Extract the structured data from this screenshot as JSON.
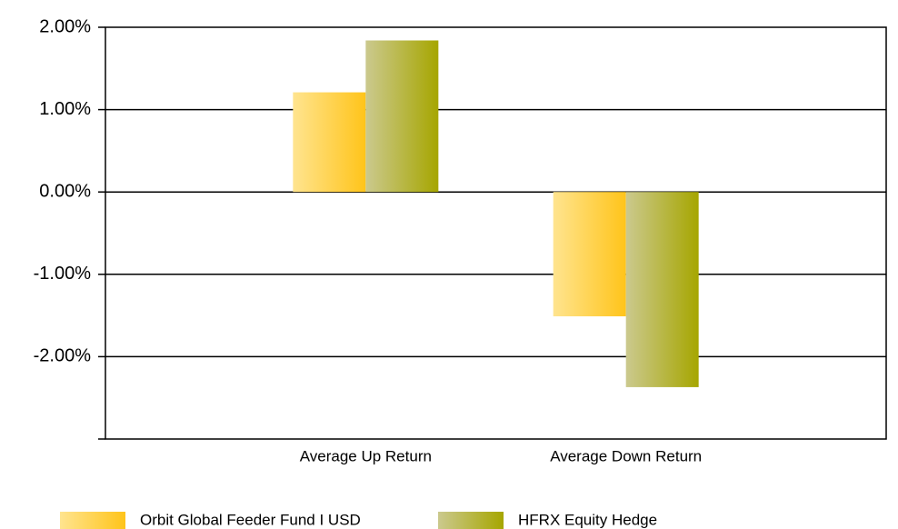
{
  "chart_data": {
    "type": "bar",
    "categories": [
      "Average Up Return",
      "Average Down Return"
    ],
    "series": [
      {
        "name": "Orbit Global Feeder Fund I USD",
        "color": [
          "#ffe48f",
          "#ffc41a"
        ],
        "values": [
          1.21,
          -1.51
        ]
      },
      {
        "name": "HFRX Equity Hedge",
        "color": [
          "#cbc98e",
          "#a6a600"
        ],
        "values": [
          1.84,
          -2.37
        ]
      }
    ],
    "ylim": [
      -3,
      2
    ],
    "yticks": [
      {
        "value": -2,
        "label": "-2.00%"
      },
      {
        "value": -1,
        "label": "-1.00%"
      },
      {
        "value": 0,
        "label": "0.00%"
      },
      {
        "value": 1,
        "label": "1.00%"
      },
      {
        "value": 2,
        "label": "2.00%"
      }
    ],
    "grid": true,
    "legend": "bottom"
  }
}
